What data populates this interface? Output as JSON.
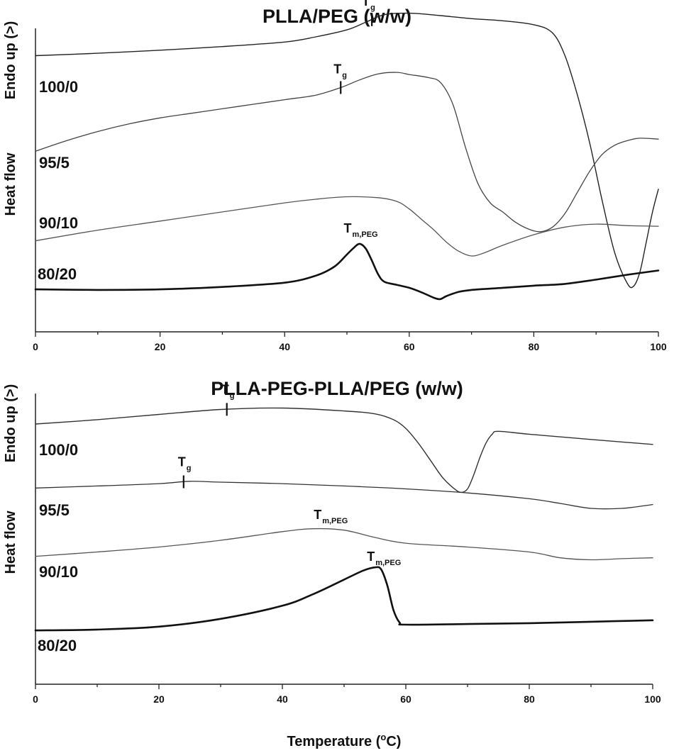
{
  "chart_data": [
    {
      "type": "line",
      "title": "PLLA/PEG (w/w)",
      "xlabel": "",
      "ylabel": "Heat flow",
      "ylabel_direction": "Endo up (>)",
      "xlim": [
        0,
        100
      ],
      "xticks": [
        0,
        20,
        40,
        60,
        80,
        100
      ],
      "ylim": [
        0,
        10
      ],
      "series": [
        {
          "name": "100/0",
          "color": "#222222",
          "weight": 1.4,
          "x": [
            0,
            10,
            20,
            30,
            40,
            45,
            50,
            53,
            56,
            60,
            65,
            70,
            75,
            80,
            83,
            85,
            87,
            89,
            91,
            93,
            95,
            96,
            97,
            98,
            99,
            100
          ],
          "y": [
            9.1,
            9.18,
            9.28,
            9.4,
            9.55,
            9.72,
            9.95,
            10.2,
            10.45,
            10.5,
            10.42,
            10.32,
            10.25,
            10.12,
            9.85,
            9.1,
            7.8,
            6.2,
            4.3,
            2.6,
            1.6,
            1.5,
            1.95,
            2.9,
            3.9,
            4.7
          ]
        },
        {
          "name": "95/5",
          "color": "#444444",
          "weight": 1.3,
          "x": [
            0,
            5,
            10,
            15,
            20,
            25,
            30,
            35,
            40,
            45,
            49,
            52,
            55,
            58,
            60,
            63,
            65,
            67,
            69,
            71,
            73,
            75,
            77,
            79,
            81,
            83,
            85,
            87,
            89,
            91,
            93,
            95,
            97,
            100
          ],
          "y": [
            5.95,
            6.3,
            6.6,
            6.85,
            7.05,
            7.2,
            7.35,
            7.5,
            7.65,
            7.8,
            8.05,
            8.3,
            8.5,
            8.55,
            8.48,
            8.38,
            8.22,
            7.5,
            6.1,
            4.9,
            4.25,
            3.95,
            3.62,
            3.4,
            3.3,
            3.45,
            3.9,
            4.6,
            5.3,
            5.85,
            6.15,
            6.3,
            6.38,
            6.35
          ]
        },
        {
          "name": "90/10",
          "color": "#555555",
          "weight": 1.3,
          "x": [
            0,
            10,
            20,
            30,
            40,
            45,
            50,
            55,
            58,
            60,
            62,
            64,
            66,
            68,
            70,
            72,
            75,
            80,
            85,
            90,
            95,
            100
          ],
          "y": [
            3.0,
            3.35,
            3.65,
            3.95,
            4.25,
            4.37,
            4.45,
            4.42,
            4.3,
            4.05,
            3.7,
            3.35,
            2.95,
            2.65,
            2.5,
            2.6,
            2.85,
            3.2,
            3.45,
            3.55,
            3.5,
            3.48
          ]
        },
        {
          "name": "80/20",
          "color": "#111111",
          "weight": 2.6,
          "x": [
            0,
            10,
            20,
            30,
            40,
            45,
            48,
            50,
            51,
            52,
            53,
            54,
            55,
            56,
            58,
            60,
            62,
            64,
            65,
            66,
            68,
            70,
            75,
            80,
            85,
            90,
            95,
            100
          ],
          "y": [
            1.4,
            1.38,
            1.4,
            1.48,
            1.62,
            1.85,
            2.15,
            2.55,
            2.75,
            2.9,
            2.75,
            2.35,
            1.9,
            1.65,
            1.55,
            1.45,
            1.3,
            1.12,
            1.08,
            1.18,
            1.32,
            1.38,
            1.45,
            1.52,
            1.58,
            1.72,
            1.88,
            2.02
          ]
        }
      ],
      "annotations": [
        {
          "text": "T",
          "sub": "g",
          "series": "100/0",
          "x": 54
        },
        {
          "text": "T",
          "sub": "g",
          "series": "95/5",
          "x": 49
        },
        {
          "text": "T",
          "sub": "m,PEG",
          "series": "80/20",
          "x": 52
        }
      ]
    },
    {
      "type": "line",
      "title": "PLLA-PEG-PLLA/PEG (w/w)",
      "xlabel": "Temperature (°C)",
      "ylabel": "Heat flow",
      "ylabel_direction": "Endo up (>)",
      "xlim": [
        0,
        100
      ],
      "xticks": [
        0,
        20,
        40,
        60,
        80,
        100
      ],
      "ylim": [
        0,
        10
      ],
      "series": [
        {
          "name": "100/0",
          "color": "#333333",
          "weight": 1.4,
          "x": [
            0,
            10,
            20,
            30,
            40,
            50,
            55,
            58,
            60,
            62,
            64,
            66,
            68,
            69,
            70,
            71,
            72,
            73,
            74,
            75,
            80,
            90,
            100
          ],
          "y": [
            8.95,
            9.1,
            9.28,
            9.45,
            9.5,
            9.4,
            9.3,
            9.1,
            8.8,
            8.3,
            7.7,
            7.1,
            6.7,
            6.6,
            6.72,
            7.2,
            7.8,
            8.3,
            8.6,
            8.7,
            8.6,
            8.42,
            8.25
          ]
        },
        {
          "name": "95/5",
          "color": "#333333",
          "weight": 1.3,
          "x": [
            0,
            10,
            20,
            25,
            30,
            40,
            50,
            60,
            70,
            80,
            85,
            90,
            95,
            100
          ],
          "y": [
            6.75,
            6.82,
            6.9,
            6.98,
            6.95,
            6.9,
            6.82,
            6.72,
            6.58,
            6.38,
            6.22,
            6.05,
            6.05,
            6.18
          ]
        },
        {
          "name": "90/10",
          "color": "#555555",
          "weight": 1.3,
          "x": [
            0,
            10,
            20,
            30,
            40,
            45,
            50,
            55,
            60,
            70,
            80,
            85,
            90,
            95,
            100
          ],
          "y": [
            4.4,
            4.55,
            4.72,
            4.95,
            5.25,
            5.35,
            5.3,
            5.05,
            4.85,
            4.72,
            4.55,
            4.35,
            4.28,
            4.32,
            4.35
          ]
        },
        {
          "name": "80/20",
          "color": "#111111",
          "weight": 2.6,
          "x": [
            0,
            10,
            20,
            30,
            40,
            45,
            50,
            53,
            55,
            56,
            57,
            58,
            59,
            60,
            70,
            80,
            90,
            100
          ],
          "y": [
            1.85,
            1.88,
            1.98,
            2.25,
            2.7,
            3.1,
            3.6,
            3.9,
            4.02,
            3.95,
            3.4,
            2.55,
            2.12,
            2.05,
            2.07,
            2.1,
            2.15,
            2.2
          ]
        }
      ],
      "annotations": [
        {
          "text": "T",
          "sub": "g",
          "series": "100/0",
          "x": 31
        },
        {
          "text": "T",
          "sub": "g",
          "series": "95/5",
          "x": 24
        },
        {
          "text": "T",
          "sub": "m,PEG",
          "series": "90/10",
          "x": 46
        },
        {
          "text": "T",
          "sub": "m,PEG",
          "series": "80/20",
          "x": 56
        }
      ]
    }
  ]
}
